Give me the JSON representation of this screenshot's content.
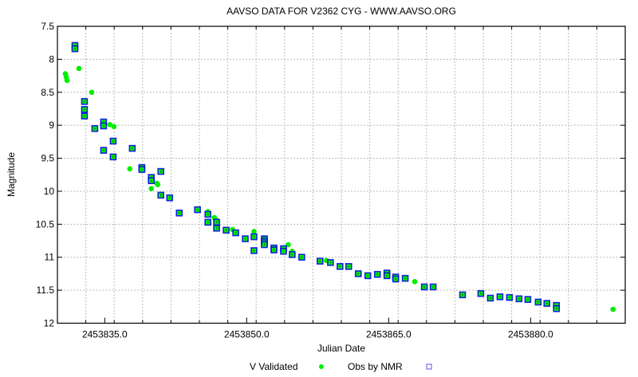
{
  "chart_data": {
    "type": "scatter",
    "title": "AAVSO DATA FOR V2362 CYG - WWW.AAVSO.ORG",
    "xlabel": "Julian Date",
    "ylabel": "Magnitude",
    "xlim": [
      2453830,
      2453890
    ],
    "ylim": [
      7.5,
      12
    ],
    "y_inverted": true,
    "grid": true,
    "legend_placement": "bottom",
    "x_ticks": [
      2453835.0,
      2453850.0,
      2453865.0,
      2453880.0
    ],
    "x_tick_labels": [
      "2453835.0",
      "2453850.0",
      "2453865.0",
      "2453880.0"
    ],
    "y_ticks": [
      7.5,
      8,
      8.5,
      9,
      9.5,
      10,
      10.5,
      11,
      11.5,
      12
    ],
    "y_tick_labels": [
      "7.5",
      "8",
      "8.5",
      "9",
      "9.5",
      "10",
      "10.5",
      "11",
      "11.5",
      "12"
    ],
    "colors": {
      "v_validated": "#00ee00",
      "nmr": "#0000ee"
    },
    "series": [
      {
        "name": "V Validated",
        "marker": "dot",
        "points": [
          [
            2453830.84,
            8.22
          ],
          [
            2453830.93,
            8.27
          ],
          [
            2453831.01,
            8.32
          ],
          [
            2453832.27,
            8.14
          ],
          [
            2453833.62,
            8.5
          ],
          [
            2453835.55,
            8.99
          ],
          [
            2453835.97,
            9.02
          ],
          [
            2453837.65,
            9.66
          ],
          [
            2453840.51,
            9.88
          ],
          [
            2453840.6,
            9.9
          ],
          [
            2453839.92,
            9.96
          ],
          [
            2453845.9,
            10.31
          ],
          [
            2453846.57,
            10.4
          ],
          [
            2453846.74,
            10.43
          ],
          [
            2453848.5,
            10.58
          ],
          [
            2453850.77,
            10.61
          ],
          [
            2453854.39,
            10.81
          ],
          [
            2453854.81,
            10.91
          ],
          [
            2453858.43,
            11.05
          ],
          [
            2453867.76,
            11.37
          ],
          [
            2453888.71,
            11.79
          ]
        ]
      },
      {
        "name": "Obs by NMR",
        "marker": "square",
        "points": [
          [
            2453831.85,
            7.79
          ],
          [
            2453831.85,
            7.84
          ],
          [
            2453832.86,
            8.64
          ],
          [
            2453832.86,
            8.76
          ],
          [
            2453832.86,
            8.86
          ],
          [
            2453833.95,
            9.05
          ],
          [
            2453834.88,
            8.95
          ],
          [
            2453834.88,
            9.01
          ],
          [
            2453834.88,
            9.38
          ],
          [
            2453835.89,
            9.24
          ],
          [
            2453835.89,
            9.48
          ],
          [
            2453837.91,
            9.35
          ],
          [
            2453838.92,
            9.64
          ],
          [
            2453838.92,
            9.67
          ],
          [
            2453840.93,
            9.7
          ],
          [
            2453839.92,
            9.79
          ],
          [
            2453839.92,
            9.84
          ],
          [
            2453840.93,
            10.06
          ],
          [
            2453841.86,
            10.1
          ],
          [
            2453842.87,
            10.33
          ],
          [
            2453844.8,
            10.28
          ],
          [
            2453845.9,
            10.35
          ],
          [
            2453845.9,
            10.47
          ],
          [
            2453846.82,
            10.47
          ],
          [
            2453846.82,
            10.56
          ],
          [
            2453847.83,
            10.59
          ],
          [
            2453848.84,
            10.63
          ],
          [
            2453849.85,
            10.72
          ],
          [
            2453850.77,
            10.69
          ],
          [
            2453850.77,
            10.9
          ],
          [
            2453851.87,
            10.72
          ],
          [
            2453851.87,
            10.75
          ],
          [
            2453851.87,
            10.78
          ],
          [
            2453851.87,
            10.81
          ],
          [
            2453852.88,
            10.86
          ],
          [
            2453852.88,
            10.89
          ],
          [
            2453853.89,
            10.87
          ],
          [
            2453853.89,
            10.91
          ],
          [
            2453854.81,
            10.96
          ],
          [
            2453855.82,
            11.0
          ],
          [
            2453857.75,
            11.06
          ],
          [
            2453858.85,
            11.08
          ],
          [
            2453859.86,
            11.14
          ],
          [
            2453860.78,
            11.14
          ],
          [
            2453861.79,
            11.25
          ],
          [
            2453862.8,
            11.28
          ],
          [
            2453863.81,
            11.26
          ],
          [
            2453864.82,
            11.24
          ],
          [
            2453864.82,
            11.28
          ],
          [
            2453865.74,
            11.3
          ],
          [
            2453865.74,
            11.33
          ],
          [
            2453866.75,
            11.32
          ],
          [
            2453868.77,
            11.45
          ],
          [
            2453869.7,
            11.45
          ],
          [
            2453872.81,
            11.57
          ],
          [
            2453874.74,
            11.55
          ],
          [
            2453875.75,
            11.62
          ],
          [
            2453876.76,
            11.6
          ],
          [
            2453877.77,
            11.61
          ],
          [
            2453878.78,
            11.63
          ],
          [
            2453879.71,
            11.64
          ],
          [
            2453880.8,
            11.68
          ],
          [
            2453881.72,
            11.7
          ],
          [
            2453882.73,
            11.73
          ],
          [
            2453882.73,
            11.78
          ]
        ]
      }
    ]
  }
}
